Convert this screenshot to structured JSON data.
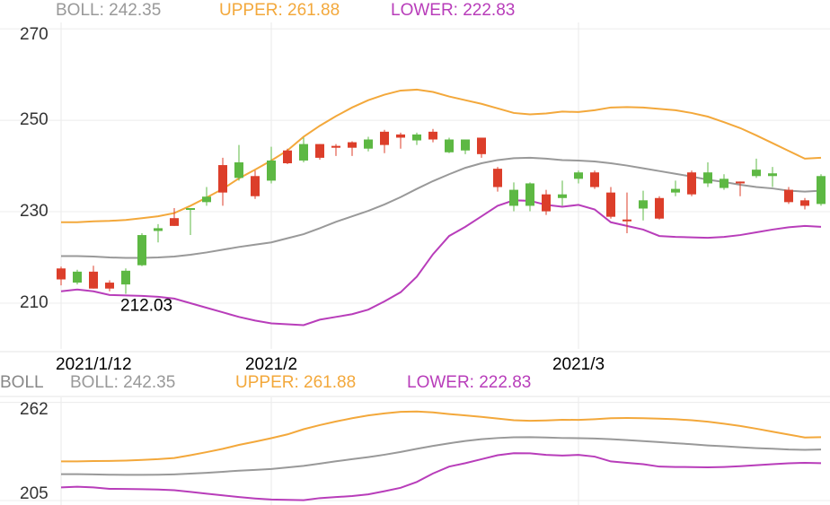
{
  "chart_data": [
    {
      "type": "candlestick",
      "up_color": "#5DB843",
      "down_color": "#DC3E2A",
      "categories": [
        "2021/1/12",
        null,
        null,
        null,
        null,
        null,
        null,
        null,
        null,
        null,
        null,
        null,
        null,
        "2021/2",
        null,
        null,
        null,
        null,
        null,
        null,
        null,
        null,
        null,
        null,
        null,
        null,
        null,
        null,
        null,
        null,
        null,
        null,
        "2021/3",
        null,
        null,
        null,
        null,
        null,
        null,
        null,
        null,
        null,
        null,
        null,
        null,
        null,
        null,
        null
      ],
      "open": [
        217.6,
        214.5,
        216.9,
        214.5,
        214.1,
        218.3,
        225.8,
        228.6,
        230.4,
        232.1,
        240.2,
        237.4,
        237.8,
        236.8,
        243.4,
        241.2,
        244.8,
        244.4,
        245.2,
        243.8,
        247.5,
        246.9,
        245.6,
        247.5,
        243.0,
        243.4,
        246.2,
        239.4,
        231.3,
        231.3,
        233.8,
        233.0,
        237.2,
        238.6,
        234.2,
        228.3,
        230.7,
        233.0,
        234.2,
        238.6,
        236.2,
        235.2,
        236.6,
        237.8,
        237.8,
        234.8,
        232.5,
        231.7
      ],
      "high": [
        218.0,
        217.3,
        218.2,
        215.0,
        217.6,
        225.3,
        227.3,
        230.8,
        230.8,
        235.4,
        241.8,
        244.6,
        239.0,
        244.2,
        243.8,
        246.2,
        244.8,
        244.8,
        245.4,
        246.4,
        247.9,
        247.3,
        247.3,
        248.1,
        246.2,
        245.8,
        246.2,
        239.8,
        236.4,
        236.4,
        234.8,
        236.8,
        239.0,
        239.0,
        235.4,
        234.2,
        234.6,
        233.4,
        236.8,
        239.0,
        240.8,
        238.2,
        236.6,
        241.6,
        239.8,
        235.4,
        233.0,
        238.2
      ],
      "low": [
        213.9,
        214.1,
        213.2,
        212.6,
        212.03,
        218.1,
        223.3,
        226.9,
        224.9,
        231.3,
        231.3,
        236.8,
        232.8,
        236.2,
        240.4,
        240.8,
        241.4,
        242.2,
        242.2,
        243.2,
        242.8,
        243.8,
        244.6,
        245.2,
        242.8,
        242.6,
        241.8,
        234.4,
        230.1,
        230.1,
        229.3,
        231.3,
        236.2,
        235.0,
        228.5,
        225.3,
        228.1,
        228.3,
        233.4,
        233.4,
        235.4,
        234.8,
        233.4,
        237.4,
        235.4,
        231.7,
        230.5,
        231.3
      ],
      "close": [
        215.2,
        216.9,
        213.2,
        213.2,
        217.1,
        224.9,
        226.4,
        226.9,
        230.8,
        233.3,
        234.2,
        240.8,
        233.4,
        241.2,
        240.6,
        244.8,
        241.8,
        244.0,
        244.0,
        245.8,
        244.6,
        246.2,
        246.9,
        245.8,
        245.8,
        245.8,
        242.6,
        235.4,
        234.8,
        236.2,
        230.1,
        233.8,
        238.6,
        235.4,
        228.9,
        227.9,
        232.5,
        228.5,
        235.0,
        233.8,
        238.6,
        237.2,
        236.2,
        239.2,
        238.4,
        232.1,
        231.3,
        237.8
      ],
      "series": [
        {
          "name": "BOLL: 242.35",
          "color": "#999999",
          "values": [
            220.3,
            220.3,
            220.2,
            220.0,
            219.9,
            219.9,
            220.0,
            220.2,
            220.6,
            221.1,
            221.7,
            222.3,
            222.8,
            223.3,
            224.2,
            225.1,
            226.4,
            227.8,
            229.0,
            230.2,
            231.6,
            233.2,
            235.0,
            236.7,
            238.2,
            239.6,
            240.6,
            241.3,
            241.7,
            241.8,
            241.6,
            241.3,
            241.2,
            241.0,
            240.6,
            240.1,
            239.5,
            238.9,
            238.3,
            237.7,
            237.0,
            236.5,
            235.9,
            235.4,
            235.1,
            234.6,
            234.4,
            234.6
          ]
        },
        {
          "name": "UPPER: 261.88",
          "color": "#F3A83B",
          "values": [
            227.7,
            227.7,
            227.9,
            228.0,
            228.2,
            228.6,
            229.0,
            229.7,
            231.3,
            233.1,
            235.0,
            237.3,
            239.2,
            241.2,
            243.4,
            246.4,
            248.8,
            250.9,
            252.8,
            254.4,
            255.6,
            256.5,
            256.7,
            256.2,
            255.2,
            254.4,
            253.6,
            252.6,
            251.6,
            251.3,
            251.5,
            251.9,
            251.8,
            252.2,
            252.8,
            252.9,
            252.8,
            252.5,
            252.2,
            251.6,
            250.8,
            249.6,
            248.3,
            246.7,
            245.0,
            243.3,
            241.6,
            241.8
          ]
        },
        {
          "name": "LOWER: 222.83",
          "color": "#B83DBA",
          "values": [
            212.6,
            213.0,
            212.6,
            211.8,
            211.7,
            211.6,
            211.4,
            211.0,
            210.0,
            209.0,
            208.0,
            207.0,
            206.2,
            205.6,
            205.4,
            205.2,
            206.4,
            207.0,
            207.6,
            208.6,
            210.4,
            212.4,
            215.8,
            220.7,
            224.7,
            226.7,
            229.0,
            231.3,
            232.5,
            232.4,
            231.5,
            231.1,
            231.5,
            230.5,
            227.7,
            226.9,
            226.1,
            224.7,
            224.5,
            224.4,
            224.3,
            224.5,
            224.9,
            225.5,
            226.1,
            226.6,
            226.9,
            226.7
          ]
        }
      ],
      "ylim": [
        200,
        271.4
      ],
      "yticks": [
        210,
        230,
        250,
        270
      ],
      "grid": true
    },
    {
      "type": "line",
      "indicator": "BOLL",
      "series": [
        {
          "name": "BOLL: 242.35",
          "color": "#999999",
          "values": [
            220.3,
            220.3,
            220.2,
            220.0,
            219.9,
            219.9,
            220.0,
            220.2,
            220.6,
            221.1,
            221.7,
            222.3,
            222.8,
            223.3,
            224.2,
            225.1,
            226.4,
            227.8,
            229.0,
            230.2,
            231.6,
            233.2,
            235.0,
            236.7,
            238.2,
            239.6,
            240.6,
            241.3,
            241.7,
            241.8,
            241.6,
            241.3,
            241.2,
            241.0,
            240.6,
            240.1,
            239.5,
            238.9,
            238.3,
            237.7,
            237.0,
            236.5,
            235.9,
            235.4,
            235.1,
            234.6,
            234.4,
            234.6
          ]
        },
        {
          "name": "UPPER: 261.88",
          "color": "#F3A83B",
          "values": [
            227.7,
            227.7,
            227.9,
            228.0,
            228.2,
            228.6,
            229.0,
            229.7,
            231.3,
            233.1,
            235.0,
            237.3,
            239.2,
            241.2,
            243.4,
            246.4,
            248.8,
            250.9,
            252.8,
            254.4,
            255.6,
            256.5,
            256.7,
            256.2,
            255.2,
            254.4,
            253.6,
            252.6,
            251.6,
            251.3,
            251.5,
            251.9,
            251.8,
            252.2,
            252.8,
            252.9,
            252.8,
            252.5,
            252.2,
            251.6,
            250.8,
            249.6,
            248.3,
            246.7,
            245.0,
            243.3,
            241.6,
            241.8
          ]
        },
        {
          "name": "LOWER: 222.83",
          "color": "#B83DBA",
          "values": [
            212.6,
            213.0,
            212.6,
            211.8,
            211.7,
            211.6,
            211.4,
            211.0,
            210.0,
            209.0,
            208.0,
            207.0,
            206.2,
            205.6,
            205.4,
            205.2,
            206.4,
            207.0,
            207.6,
            208.6,
            210.4,
            212.4,
            215.8,
            220.7,
            224.7,
            226.7,
            229.0,
            231.3,
            232.5,
            232.4,
            231.5,
            231.1,
            231.5,
            230.5,
            227.7,
            226.9,
            226.1,
            224.7,
            224.5,
            224.4,
            224.3,
            224.5,
            224.9,
            225.5,
            226.1,
            226.6,
            226.9,
            226.7
          ]
        }
      ],
      "ylim": [
        202.4,
        264.9
      ],
      "yticks": [
        205,
        262
      ],
      "grid": true
    }
  ]
}
